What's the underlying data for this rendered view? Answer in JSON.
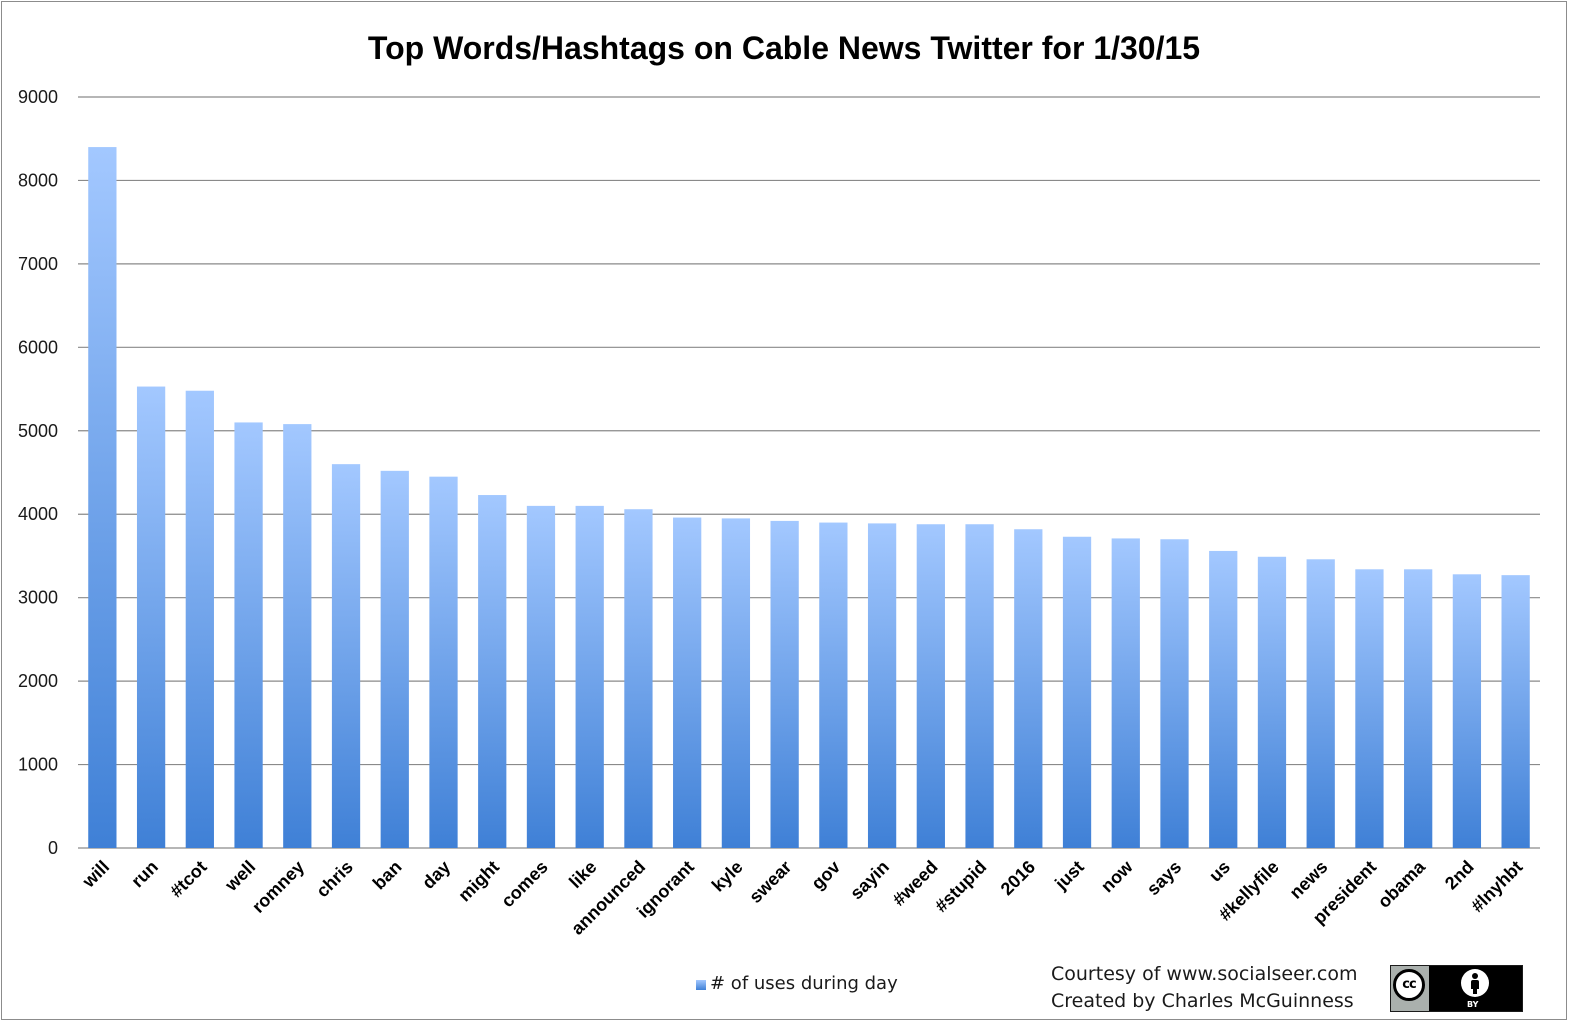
{
  "chart_data": {
    "type": "bar",
    "title": "Top Words/Hashtags on Cable News Twitter for 1/30/15",
    "xlabel": "",
    "ylabel": "",
    "ylim": [
      0,
      9000
    ],
    "yticks": [
      0,
      1000,
      2000,
      3000,
      4000,
      5000,
      6000,
      7000,
      8000,
      9000
    ],
    "grid": true,
    "legend_position": "bottom",
    "categories": [
      "will",
      "run",
      "#tcot",
      "well",
      "romney",
      "chris",
      "ban",
      "day",
      "might",
      "comes",
      "like",
      "announced",
      "ignorant",
      "kyle",
      "swear",
      "gov",
      "sayin",
      "#weed",
      "#stupid",
      "2016",
      "just",
      "now",
      "says",
      "us",
      "#kellyfile",
      "news",
      "president",
      "obama",
      "2nd",
      "#lnyhbt"
    ],
    "series": [
      {
        "name": "# of uses during day",
        "values": [
          8400,
          5530,
          5480,
          5100,
          5080,
          4600,
          4520,
          4450,
          4230,
          4100,
          4100,
          4060,
          3960,
          3950,
          3920,
          3900,
          3890,
          3880,
          3880,
          3820,
          3730,
          3710,
          3700,
          3560,
          3490,
          3460,
          3340,
          3340,
          3280,
          3270
        ]
      }
    ],
    "colors": {
      "bar_top": "#a3c8ff",
      "bar_bottom": "#3f80d6",
      "grid": "#8a8a8a"
    }
  },
  "footer": {
    "courtesy": "Courtesy of www.socialseer.com",
    "created_by": "Created by Charles McGuinness"
  },
  "license_badge": {
    "cc_text": "cc",
    "by_text": "BY"
  }
}
